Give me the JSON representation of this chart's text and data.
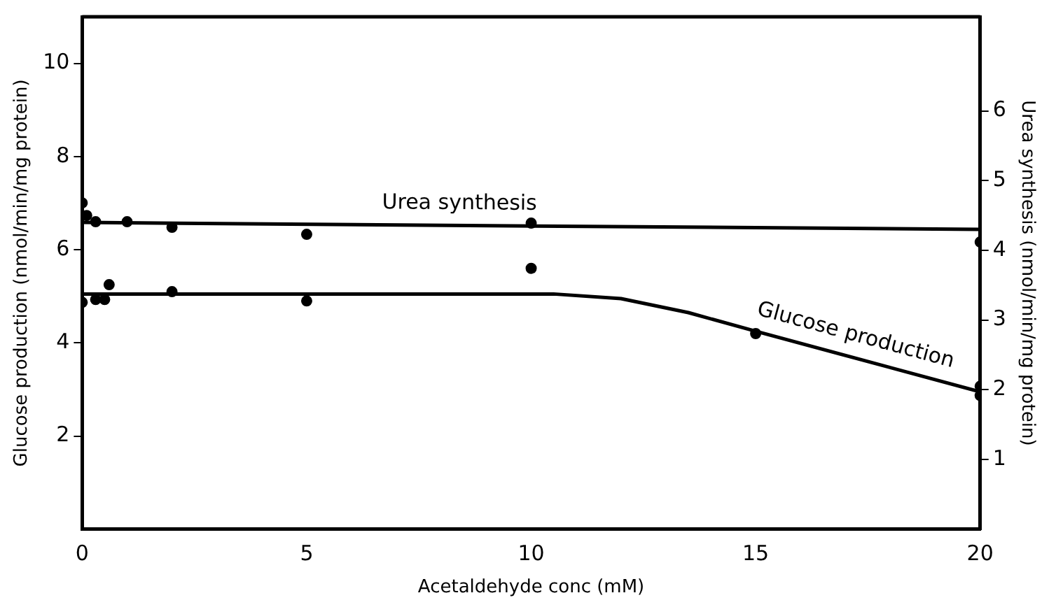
{
  "chart_data": {
    "type": "scatter",
    "xlabel": "Acetaldehyde conc (mM)",
    "ylabel": "Glucose production (nmol/min/mg protein)",
    "y2label": "Urea synthesis (nmol/min/mg protein)",
    "xlim": [
      0,
      20
    ],
    "xticks": [
      0,
      5,
      10,
      15,
      20
    ],
    "ylim": [
      0,
      11
    ],
    "yticks": [
      2,
      4,
      6,
      8,
      10
    ],
    "y2lim": [
      0,
      7.35
    ],
    "y2ticks": [
      1,
      2,
      3,
      4,
      5,
      6
    ],
    "grid": false,
    "legend": false,
    "marker": "circle",
    "series": [
      {
        "name": "Urea synthesis",
        "type": "line",
        "axis": "y2",
        "marker": "none",
        "color": "#000000",
        "x": [
          0,
          20
        ],
        "values": [
          4.4,
          4.3
        ]
      },
      {
        "type": "scatter",
        "axis": "y2",
        "color": "#000000",
        "x": [
          0,
          0.1,
          0.3,
          1,
          2,
          5,
          10,
          20
        ],
        "values": [
          4.68,
          4.5,
          4.41,
          4.41,
          4.33,
          4.23,
          4.39,
          4.12
        ]
      },
      {
        "name": "Glucose production",
        "type": "line",
        "axis": "y",
        "marker": "none",
        "color": "#000000",
        "x": [
          0,
          10.5,
          12,
          13.5,
          15,
          20
        ],
        "values": [
          5.05,
          5.05,
          4.95,
          4.65,
          4.25,
          2.95
        ]
      },
      {
        "type": "scatter",
        "axis": "y",
        "color": "#000000",
        "x": [
          0,
          0.3,
          0.5,
          0.6,
          2,
          5,
          10,
          15,
          20,
          20
        ],
        "values": [
          4.87,
          4.93,
          4.93,
          5.25,
          5.1,
          4.9,
          5.6,
          4.2,
          2.87,
          3.07
        ]
      }
    ]
  }
}
